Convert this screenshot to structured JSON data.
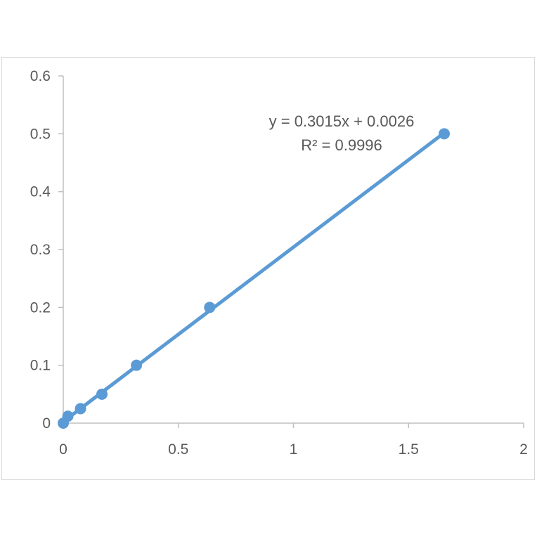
{
  "chart_data": {
    "type": "scatter",
    "title": "",
    "xlabel": "",
    "ylabel": "",
    "xlim": [
      0,
      2
    ],
    "ylim": [
      0,
      0.6
    ],
    "x_ticks": [
      0,
      0.5,
      1,
      1.5,
      2
    ],
    "x_tick_labels": [
      "0",
      "0.5",
      "1",
      "1.5",
      "2"
    ],
    "y_ticks": [
      0,
      0.1,
      0.2,
      0.3,
      0.4,
      0.5,
      0.6
    ],
    "y_tick_labels": [
      "0",
      "0.1",
      "0.2",
      "0.3",
      "0.4",
      "0.5",
      "0.6"
    ],
    "grid": false,
    "legend": "none",
    "series": [
      {
        "color": "#5b9bd5",
        "x": [
          0,
          0.02,
          0.075,
          0.168,
          0.318,
          0.636,
          1.655
        ],
        "y": [
          0,
          0.012,
          0.025,
          0.05,
          0.1,
          0.2,
          0.5
        ]
      }
    ],
    "trendline": {
      "type": "linear",
      "slope": 0.3015,
      "intercept": 0.0026,
      "x_range": [
        0,
        1.655
      ],
      "color": "#5b9bd5",
      "equation_label": "y = 0.3015x + 0.0026",
      "r2_label": "R² = 0.9996"
    },
    "axis_color": "#bfbfbf"
  }
}
